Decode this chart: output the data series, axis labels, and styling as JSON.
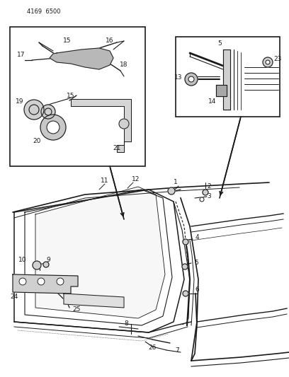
{
  "title": "4169 6500",
  "bg": "#f5f5f5",
  "lc": "#1a1a1a",
  "fig_width": 4.08,
  "fig_height": 5.33,
  "dpi": 100
}
